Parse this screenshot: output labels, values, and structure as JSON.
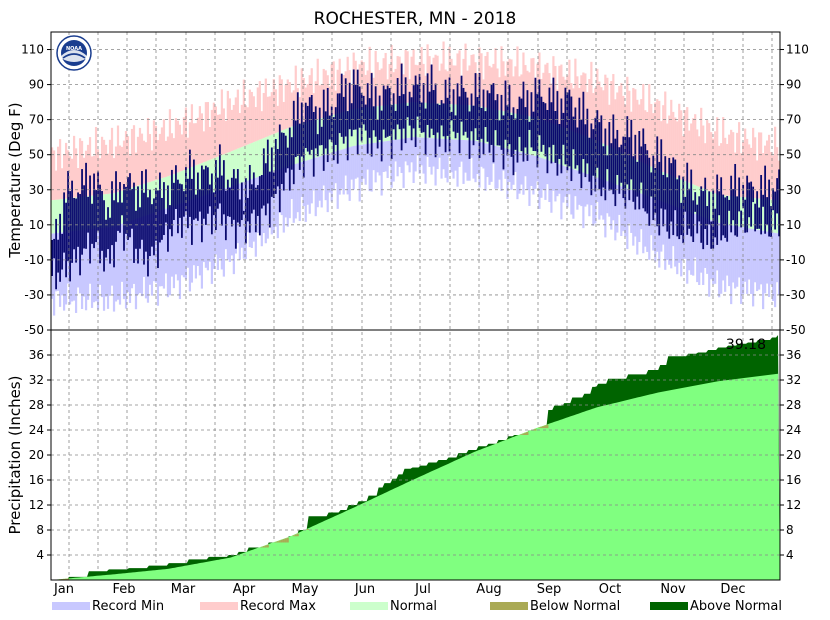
{
  "colors": {
    "record_min": "#c8c8ff",
    "record_max": "#ffcccc",
    "normal_temp": "#ccffcc",
    "observed_temp": "#0a0a6e",
    "normal_precip": "#80ff80",
    "below_normal": "#aaaa55",
    "above_normal": "#006400",
    "grid": "#888888"
  },
  "logo": {
    "text": "NOAA"
  },
  "chart_data": [
    {
      "type": "area",
      "title": "ROCHESTER, MN - 2018",
      "ylabel": "Temperature (Deg F)",
      "xlabel": "",
      "grid": true,
      "ylim": [
        -50,
        120
      ],
      "yticks": [
        -50,
        -30,
        -10,
        10,
        30,
        50,
        70,
        90,
        110
      ],
      "x_months": [
        "Jan",
        "Feb",
        "Mar",
        "Apr",
        "May",
        "Jun",
        "Jul",
        "Aug",
        "Sep",
        "Oct",
        "Nov",
        "Dec"
      ],
      "series": [
        {
          "name": "Record Max",
          "days": [
            1,
            32,
            60,
            91,
            121,
            152,
            182,
            213,
            244,
            274,
            305,
            335,
            365
          ],
          "values": [
            50,
            57,
            65,
            80,
            90,
            100,
            104,
            104,
            100,
            92,
            78,
            62,
            55
          ]
        },
        {
          "name": "Record Min",
          "days": [
            1,
            32,
            60,
            91,
            121,
            152,
            182,
            213,
            244,
            274,
            305,
            335,
            365
          ],
          "values": [
            -33,
            -33,
            -25,
            -10,
            15,
            32,
            42,
            38,
            28,
            15,
            -8,
            -25,
            -30
          ]
        },
        {
          "name": "Normal",
          "days": [
            1,
            32,
            60,
            91,
            121,
            152,
            182,
            213,
            244,
            274,
            305,
            335,
            365
          ],
          "normal_high": [
            24,
            28,
            38,
            52,
            66,
            76,
            80,
            78,
            71,
            58,
            41,
            27,
            24
          ],
          "normal_low": [
            5,
            9,
            20,
            32,
            44,
            55,
            60,
            58,
            49,
            37,
            24,
            11,
            5
          ]
        },
        {
          "name": "Observed",
          "days": [
            1,
            8,
            15,
            22,
            29,
            36,
            43,
            50,
            57,
            64,
            71,
            78,
            85,
            92,
            99,
            106,
            113,
            120,
            127,
            134,
            141,
            148,
            155,
            162,
            169,
            176,
            183,
            190,
            197,
            204,
            211,
            218,
            225,
            232,
            239,
            246,
            253,
            260,
            267,
            274,
            281,
            288,
            295,
            302,
            309,
            316,
            323,
            330,
            337,
            344,
            351,
            358,
            365
          ],
          "high": [
            -5,
            28,
            32,
            36,
            20,
            34,
            30,
            30,
            28,
            36,
            40,
            38,
            42,
            35,
            30,
            42,
            55,
            65,
            80,
            74,
            78,
            88,
            90,
            82,
            84,
            88,
            88,
            90,
            82,
            86,
            84,
            86,
            82,
            78,
            82,
            85,
            80,
            82,
            72,
            68,
            60,
            62,
            58,
            48,
            48,
            35,
            30,
            25,
            30,
            32,
            30,
            30,
            34
          ],
          "low": [
            -20,
            -15,
            -8,
            0,
            -12,
            8,
            -5,
            -10,
            2,
            12,
            10,
            12,
            15,
            8,
            10,
            14,
            25,
            38,
            48,
            50,
            52,
            58,
            62,
            56,
            58,
            62,
            64,
            60,
            58,
            62,
            58,
            56,
            54,
            48,
            54,
            52,
            46,
            44,
            40,
            32,
            30,
            28,
            24,
            14,
            10,
            5,
            8,
            0,
            5,
            10,
            12,
            8,
            10
          ]
        }
      ]
    },
    {
      "type": "area",
      "ylabel": "Precipitation (Inches)",
      "xlabel": "",
      "grid": true,
      "ylim": [
        0,
        40
      ],
      "yticks": [
        4,
        8,
        12,
        16,
        20,
        24,
        28,
        32,
        36
      ],
      "total_label": "39.18",
      "x_months": [
        "Jan",
        "Feb",
        "Mar",
        "Apr",
        "May",
        "Jun",
        "Jul",
        "Aug",
        "Sep",
        "Oct",
        "Nov",
        "Dec"
      ],
      "series": [
        {
          "name": "Normal",
          "days": [
            1,
            32,
            60,
            91,
            121,
            152,
            182,
            213,
            244,
            274,
            305,
            335,
            365
          ],
          "values": [
            0,
            0.9,
            1.8,
            3.6,
            7.0,
            11.5,
            16.0,
            20.5,
            24.3,
            27.6,
            30.0,
            31.8,
            33.0
          ]
        },
        {
          "name": "Observed",
          "days": [
            1,
            10,
            20,
            30,
            40,
            50,
            60,
            70,
            80,
            90,
            95,
            100,
            110,
            120,
            125,
            130,
            140,
            146,
            150,
            155,
            160,
            165,
            168,
            172,
            175,
            178,
            182,
            186,
            190,
            195,
            200,
            205,
            210,
            215,
            220,
            225,
            230,
            233,
            240,
            244,
            250,
            253,
            258,
            262,
            268,
            272,
            275,
            280,
            290,
            300,
            306,
            310,
            320,
            325,
            330,
            335,
            340,
            345,
            350,
            355,
            362,
            365
          ],
          "values": [
            0,
            0.5,
            1.4,
            1.7,
            1.9,
            2.3,
            2.7,
            3.3,
            3.7,
            4.0,
            4.5,
            5.2,
            6.0,
            7.0,
            8.0,
            10.2,
            10.8,
            11.2,
            12.0,
            12.6,
            13.5,
            14.8,
            15.5,
            16.2,
            16.9,
            17.8,
            18.0,
            18.3,
            18.8,
            19.2,
            19.6,
            20.3,
            20.8,
            21.4,
            21.8,
            22.4,
            23.0,
            23.2,
            23.9,
            24.3,
            27.2,
            27.9,
            28.3,
            29.2,
            29.8,
            30.9,
            31.4,
            32.2,
            32.9,
            33.6,
            34.4,
            35.8,
            36.2,
            36.4,
            36.8,
            37.2,
            37.5,
            37.8,
            38.0,
            38.4,
            38.8,
            39.18
          ]
        }
      ]
    }
  ],
  "legend": [
    {
      "label": "Record Min",
      "color": "#c8c8ff"
    },
    {
      "label": "Record Max",
      "color": "#ffcccc"
    },
    {
      "label": "Normal",
      "color": "#ccffcc"
    },
    {
      "label": "Below Normal",
      "color": "#aaaa55"
    },
    {
      "label": "Above Normal",
      "color": "#006400"
    }
  ]
}
